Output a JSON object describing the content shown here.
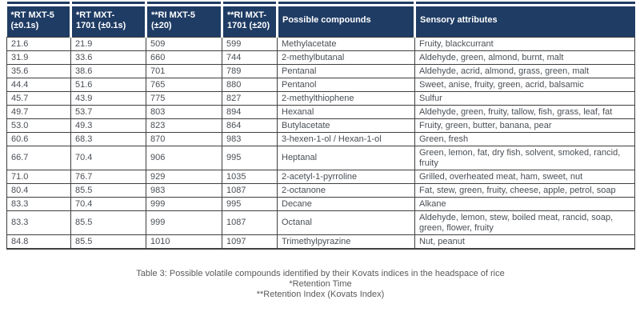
{
  "table": {
    "columns": [
      {
        "key": "rt-mxt5",
        "label": "*RT MXT-5\n(±0.1s)"
      },
      {
        "key": "rt-mxt1701",
        "label": "*RT MXT-\n1701 (±0.1s)"
      },
      {
        "key": "ri-mxt5",
        "label": "**RI MXT-5\n(±20)"
      },
      {
        "key": "ri-mxt1701",
        "label": "**RI MXT-\n1701 (±20)"
      },
      {
        "key": "compound",
        "label": "Possible compounds"
      },
      {
        "key": "sensory",
        "label": "Sensory attributes"
      }
    ],
    "column_keys": [
      "rt-mxt5",
      "rt-mxt1701",
      "ri-mxt5",
      "ri-mxt1701",
      "compound",
      "sensory"
    ],
    "rows": [
      [
        "21.6",
        "21.9",
        "509",
        "599",
        "Methylacetate",
        "Fruity, blackcurrant"
      ],
      [
        "31.9",
        "33.6",
        "660",
        "744",
        "2-methylbutanal",
        "Aldehyde, green, almond, burnt, malt"
      ],
      [
        "35.6",
        "38.6",
        "701",
        "789",
        "Pentanal",
        "Aldehyde, acrid, almond, grass, green, malt"
      ],
      [
        "44.4",
        "51.6",
        "765",
        "880",
        "Pentanol",
        "Sweet, anise, fruity, green, acrid, balsamic"
      ],
      [
        "45.7",
        "43.9",
        "775",
        "827",
        "2-methylthiophene",
        "Sulfur"
      ],
      [
        "49.7",
        "53.7",
        "803",
        "894",
        "Hexanal",
        "Aldehyde, green, fruity, tallow, fish, grass, leaf, fat"
      ],
      [
        "53.0",
        "49.3",
        "823",
        "864",
        "Butylacetate",
        "Fruity, green, butter, banana, pear"
      ],
      [
        "60.6",
        "68.3",
        "870",
        "983",
        "3-hexen-1-ol / Hexan-1-ol",
        "Green, fresh"
      ],
      [
        "66.7",
        "70.4",
        "906",
        "995",
        "Heptanal",
        "Green, lemon, fat, dry fish, solvent, smoked, rancid, fruity"
      ],
      [
        "71.0",
        "76.7",
        "929",
        "1035",
        "2-acetyl-1-pyrroline",
        "Grilled, overheated meat, ham, sweet, nut"
      ],
      [
        "80.4",
        "85.5",
        "983",
        "1087",
        "2-octanone",
        "Fat, stew, green, fruity, cheese, apple, petrol,  soap"
      ],
      [
        "83.3",
        "70.4",
        "999",
        "995",
        "Decane",
        "Alkane"
      ],
      [
        "83.3",
        "85.5",
        "999",
        "1087",
        "Octanal",
        "Aldehyde, lemon, stew, boiled meat, rancid, soap, green, flower, fruity"
      ],
      [
        "84.8",
        "85.5",
        "1010",
        "1097",
        "Trimethylpyrazine",
        "Nut, peanut"
      ]
    ]
  },
  "caption": {
    "title": "Table 3: Possible volatile compounds identified by their Kovats indices in the headspace of rice",
    "footnote_retention_time": "*Retention Time",
    "footnote_retention_index": "**Retention Index (Kovats Index)"
  },
  "colors": {
    "header_bg": "#1f3c64",
    "header_text": "#ffffff",
    "body_text": "#4a4f55",
    "border": "#3f3f3f",
    "caption_text": "#595959"
  }
}
